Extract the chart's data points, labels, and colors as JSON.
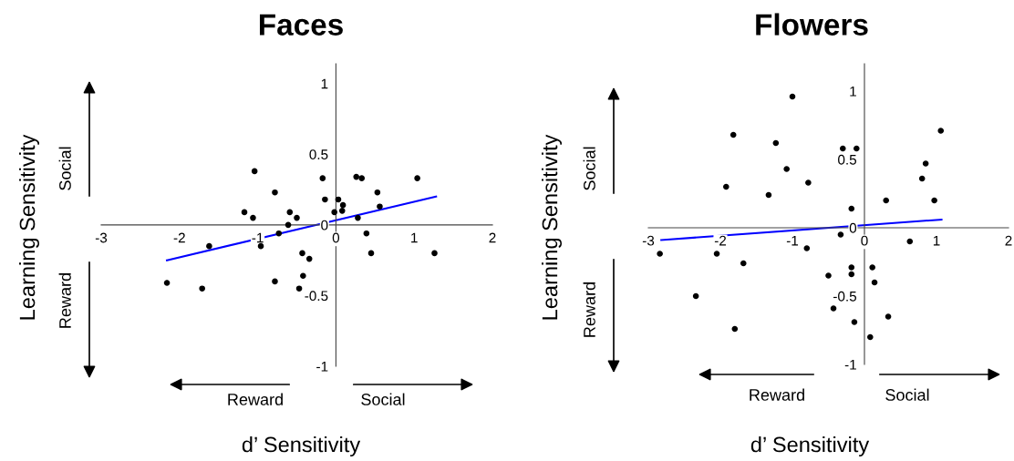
{
  "chart_data": [
    {
      "type": "scatter",
      "title": "Faces",
      "xlabel": "d’ Sensitivity",
      "ylabel": "Learning Sensitivity",
      "annotations": [
        "Social",
        "Reward",
        "Reward",
        "Social"
      ],
      "xlim": [
        -3,
        2
      ],
      "ylim": [
        -1,
        1.14
      ],
      "xticks": [
        -3,
        -2,
        -1,
        0,
        1,
        2
      ],
      "yticks": [
        -1,
        -0.5,
        0,
        0.5,
        1
      ],
      "grid": false,
      "legend": false,
      "series": [
        {
          "marker": "circle",
          "color": "#000000",
          "x": [
            -1.04,
            -0.78,
            -0.17,
            0.26,
            0.33,
            1.04,
            0.53,
            -0.14,
            0.03,
            0.09,
            0.56,
            -1.17,
            -1.06,
            -0.59,
            -0.5,
            -0.02,
            0.08,
            0.28,
            -0.61,
            -0.73,
            0.39,
            -1.62,
            -0.96,
            -0.43,
            -0.34,
            0.45,
            1.26,
            -0.42,
            -2.16,
            -1.71,
            -0.78,
            -0.47
          ],
          "values": [
            0.38,
            0.23,
            0.33,
            0.34,
            0.33,
            0.33,
            0.23,
            0.18,
            0.18,
            0.14,
            0.13,
            0.09,
            0.05,
            0.09,
            0.05,
            0.09,
            0.1,
            0.05,
            0.0,
            -0.06,
            -0.06,
            -0.15,
            -0.15,
            -0.2,
            -0.24,
            -0.2,
            -0.2,
            -0.36,
            -0.41,
            -0.45,
            -0.4,
            -0.45
          ]
        },
        {
          "type": "line",
          "color": "#0000ff",
          "x": [
            -2.16,
            1.28
          ],
          "values": [
            -0.25,
            0.2
          ]
        }
      ]
    },
    {
      "type": "scatter",
      "title": "Flowers",
      "xlabel": "d’ Sensitivity",
      "ylabel": "Learning Sensitivity",
      "annotations": [
        "Social",
        "Reward",
        "Reward",
        "Social"
      ],
      "xlim": [
        -3,
        2
      ],
      "ylim": [
        -1,
        1.2
      ],
      "xticks": [
        -3,
        -2,
        -1,
        0,
        1,
        2
      ],
      "yticks": [
        -1,
        -0.5,
        0,
        0.5,
        1
      ],
      "grid": false,
      "legend": false,
      "series": [
        {
          "marker": "circle",
          "color": "#000000",
          "x": [
            -1.0,
            -1.82,
            -1.23,
            -0.3,
            -0.11,
            1.06,
            0.85,
            0.8,
            -1.08,
            -0.78,
            -1.92,
            -1.33,
            0.3,
            0.97,
            -0.18,
            -0.33,
            0.63,
            -2.84,
            -2.05,
            -0.8,
            -1.68,
            -0.18,
            0.11,
            -0.5,
            -0.18,
            0.14,
            -2.34,
            -0.43,
            0.33,
            -0.14,
            -1.8,
            0.08
          ],
          "values": [
            0.96,
            0.68,
            0.62,
            0.58,
            0.58,
            0.71,
            0.47,
            0.36,
            0.43,
            0.33,
            0.3,
            0.24,
            0.2,
            0.2,
            0.14,
            -0.05,
            -0.1,
            -0.19,
            -0.19,
            -0.15,
            -0.26,
            -0.29,
            -0.29,
            -0.35,
            -0.34,
            -0.4,
            -0.5,
            -0.59,
            -0.65,
            -0.69,
            -0.74,
            -0.8
          ]
        },
        {
          "type": "line",
          "color": "#0000ff",
          "x": [
            -2.82,
            1.07
          ],
          "values": [
            -0.09,
            0.06
          ]
        }
      ]
    }
  ]
}
